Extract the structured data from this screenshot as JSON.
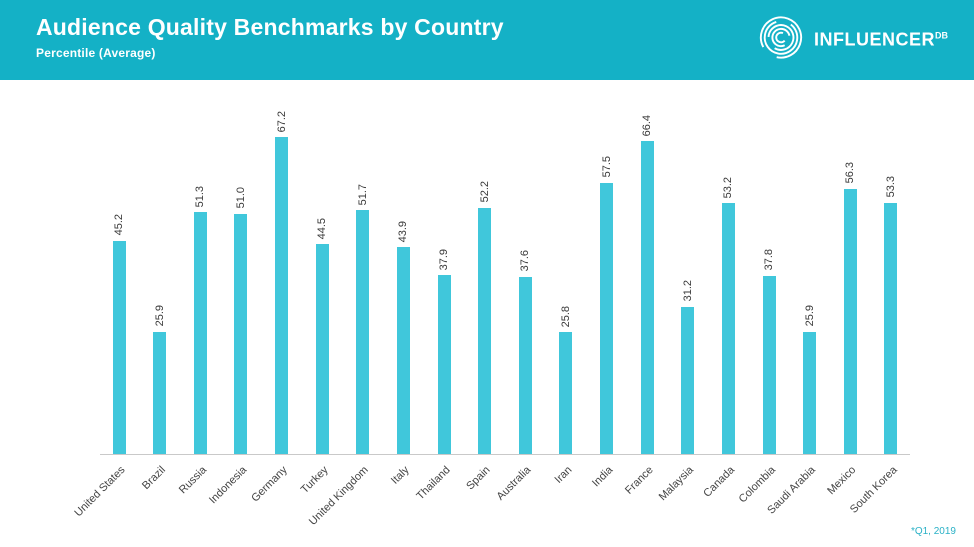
{
  "header": {
    "title": "Audience Quality Benchmarks by Country",
    "subtitle": "Percentile (Average)",
    "logo_text": "INFLUENCER",
    "logo_suffix": "DB"
  },
  "footnote": "*Q1, 2019",
  "colors": {
    "header_bg": "#14b1c6",
    "bar": "#40c7db",
    "accent_text": "#2ab1c6"
  },
  "chart_data": {
    "type": "bar",
    "title": "Audience Quality Benchmarks by Country",
    "subtitle": "Percentile (Average)",
    "categories": [
      "United States",
      "Brazil",
      "Russia",
      "Indonesia",
      "Germany",
      "Turkey",
      "United Kingdom",
      "Italy",
      "Thailand",
      "Spain",
      "Australia",
      "Iran",
      "India",
      "France",
      "Malaysia",
      "Canada",
      "Colombia",
      "Saudi Arabia",
      "Mexico",
      "South Korea"
    ],
    "values": [
      45.2,
      25.9,
      51.3,
      51.0,
      67.2,
      44.5,
      51.7,
      43.9,
      37.9,
      52.2,
      37.6,
      25.8,
      57.5,
      66.4,
      31.2,
      53.2,
      37.8,
      25.9,
      56.3,
      53.3
    ],
    "ylim": [
      0,
      70
    ],
    "grid": false,
    "legend": "none",
    "value_label_rotation": 90,
    "category_label_rotation": -45,
    "bar_color": "#40c7db"
  }
}
